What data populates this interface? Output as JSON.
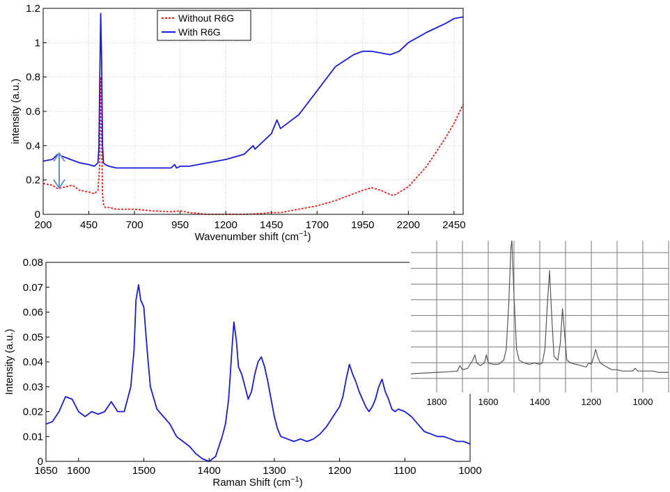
{
  "chart_data": [
    {
      "type": "line",
      "xlabel": "Wavenumber shift (cm",
      "xlabel_sup": "−1",
      "xlabel_close": ")",
      "ylabel": "intensity (a.u.)",
      "xlim": [
        200,
        2500
      ],
      "ylim": [
        0,
        1.2
      ],
      "xticks": [
        "200",
        "450",
        "700",
        "950",
        "1200",
        "1450",
        "1700",
        "1950",
        "2200",
        "2450"
      ],
      "yticks": [
        "0",
        "0.2",
        "0.4",
        "0.6",
        "0.8",
        "1",
        "1.2"
      ],
      "grid": true,
      "legend": "top-center",
      "annotation": "double-headed arrow between curves near x≈300",
      "series": [
        {
          "name": "Without R6G",
          "color": "#e8201c",
          "style": "dashed",
          "x": [
            200,
            250,
            280,
            320,
            360,
            400,
            450,
            480,
            500,
            510,
            515,
            520,
            525,
            530,
            540,
            560,
            600,
            700,
            800,
            900,
            950,
            1000,
            1100,
            1200,
            1300,
            1400,
            1450,
            1500,
            1550,
            1600,
            1700,
            1800,
            1900,
            1950,
            2000,
            2050,
            2100,
            2120,
            2200,
            2300,
            2400,
            2450,
            2500
          ],
          "y": [
            0.18,
            0.17,
            0.15,
            0.16,
            0.17,
            0.14,
            0.13,
            0.12,
            0.14,
            0.3,
            0.8,
            0.45,
            0.12,
            0.06,
            0.04,
            0.04,
            0.03,
            0.03,
            0.02,
            0.015,
            0.02,
            0.01,
            0.0,
            0.0,
            0.0,
            0.005,
            0.01,
            0.01,
            0.02,
            0.03,
            0.05,
            0.08,
            0.12,
            0.14,
            0.155,
            0.14,
            0.115,
            0.11,
            0.16,
            0.28,
            0.44,
            0.53,
            0.64
          ]
        },
        {
          "name": "With R6G",
          "color": "#1a1ad6",
          "style": "solid",
          "x": [
            200,
            250,
            280,
            300,
            350,
            400,
            450,
            480,
            500,
            505,
            510,
            515,
            520,
            525,
            530,
            540,
            560,
            600,
            700,
            800,
            900,
            920,
            930,
            950,
            1000,
            1100,
            1200,
            1300,
            1340,
            1350,
            1360,
            1400,
            1450,
            1480,
            1500,
            1550,
            1600,
            1700,
            1800,
            1900,
            1950,
            2000,
            2050,
            2100,
            2150,
            2200,
            2300,
            2400,
            2450,
            2500
          ],
          "y": [
            0.31,
            0.32,
            0.35,
            0.34,
            0.32,
            0.3,
            0.29,
            0.28,
            0.3,
            0.4,
            0.8,
            1.17,
            0.9,
            0.4,
            0.3,
            0.29,
            0.28,
            0.27,
            0.27,
            0.27,
            0.27,
            0.29,
            0.27,
            0.28,
            0.28,
            0.3,
            0.32,
            0.35,
            0.39,
            0.4,
            0.38,
            0.42,
            0.47,
            0.55,
            0.5,
            0.54,
            0.58,
            0.72,
            0.86,
            0.93,
            0.95,
            0.95,
            0.94,
            0.93,
            0.95,
            1.0,
            1.06,
            1.11,
            1.14,
            1.15
          ]
        }
      ]
    },
    {
      "type": "line",
      "xlabel": "Raman Shift (cm",
      "xlabel_sup": "−1",
      "xlabel_close": ")",
      "ylabel": "Intensity (a.u.)",
      "xlim": [
        1650,
        1000
      ],
      "ylim": [
        0,
        0.08
      ],
      "x_reversed": true,
      "xticks": [
        "1650",
        "1600",
        "1500",
        "1400",
        "1300",
        "1200",
        "1100",
        "1000"
      ],
      "yticks": [
        "0",
        "0.01",
        "0.02",
        "0.03",
        "0.04",
        "0.05",
        "0.06",
        "0.07",
        "0.08"
      ],
      "grid": false,
      "series": [
        {
          "color": "#1a1ad6",
          "x": [
            1650,
            1640,
            1630,
            1620,
            1610,
            1600,
            1590,
            1580,
            1570,
            1560,
            1550,
            1540,
            1530,
            1525,
            1520,
            1515,
            1512,
            1508,
            1505,
            1500,
            1495,
            1490,
            1480,
            1470,
            1460,
            1450,
            1440,
            1430,
            1420,
            1410,
            1400,
            1390,
            1380,
            1375,
            1370,
            1365,
            1362,
            1358,
            1355,
            1350,
            1345,
            1340,
            1335,
            1330,
            1325,
            1320,
            1315,
            1310,
            1305,
            1300,
            1295,
            1290,
            1280,
            1270,
            1260,
            1250,
            1240,
            1230,
            1220,
            1210,
            1200,
            1195,
            1190,
            1185,
            1180,
            1175,
            1170,
            1165,
            1160,
            1155,
            1150,
            1145,
            1140,
            1135,
            1130,
            1125,
            1120,
            1115,
            1110,
            1100,
            1090,
            1080,
            1070,
            1060,
            1050,
            1040,
            1030,
            1020,
            1010,
            1000
          ],
          "y": [
            0.015,
            0.016,
            0.02,
            0.026,
            0.025,
            0.02,
            0.018,
            0.02,
            0.019,
            0.02,
            0.024,
            0.02,
            0.02,
            0.025,
            0.03,
            0.045,
            0.065,
            0.071,
            0.065,
            0.062,
            0.045,
            0.03,
            0.021,
            0.018,
            0.015,
            0.01,
            0.008,
            0.006,
            0.003,
            0.001,
            0.0,
            0.002,
            0.01,
            0.015,
            0.025,
            0.045,
            0.056,
            0.048,
            0.038,
            0.035,
            0.03,
            0.025,
            0.028,
            0.035,
            0.04,
            0.042,
            0.038,
            0.032,
            0.025,
            0.018,
            0.013,
            0.01,
            0.009,
            0.008,
            0.009,
            0.008,
            0.009,
            0.011,
            0.014,
            0.018,
            0.022,
            0.026,
            0.033,
            0.039,
            0.035,
            0.032,
            0.028,
            0.025,
            0.022,
            0.02,
            0.022,
            0.025,
            0.03,
            0.033,
            0.028,
            0.025,
            0.021,
            0.02,
            0.021,
            0.02,
            0.018,
            0.015,
            0.012,
            0.011,
            0.01,
            0.01,
            0.009,
            0.008,
            0.008,
            0.007
          ]
        }
      ]
    },
    {
      "type": "line",
      "inset": true,
      "xlim": [
        1900,
        900
      ],
      "x_reversed": true,
      "xticks": [
        "1800",
        "1600",
        "1400",
        "1200",
        "1000"
      ],
      "grid": true,
      "series": [
        {
          "color": "#555555",
          "x": [
            1900,
            1850,
            1800,
            1750,
            1720,
            1710,
            1700,
            1680,
            1660,
            1652,
            1645,
            1630,
            1615,
            1607,
            1600,
            1580,
            1560,
            1540,
            1530,
            1520,
            1512,
            1508,
            1500,
            1490,
            1480,
            1460,
            1440,
            1420,
            1400,
            1390,
            1380,
            1370,
            1362,
            1355,
            1345,
            1330,
            1320,
            1312,
            1305,
            1295,
            1280,
            1260,
            1240,
            1220,
            1210,
            1200,
            1190,
            1183,
            1175,
            1165,
            1150,
            1130,
            1120,
            1110,
            1100,
            1080,
            1060,
            1040,
            1030,
            1020,
            1000,
            980,
            960,
            940,
            920,
            900
          ],
          "y": [
            0.02,
            0.025,
            0.03,
            0.035,
            0.04,
            0.08,
            0.05,
            0.06,
            0.12,
            0.16,
            0.1,
            0.08,
            0.1,
            0.16,
            0.1,
            0.09,
            0.09,
            0.12,
            0.2,
            0.55,
            0.95,
            1.0,
            0.6,
            0.2,
            0.12,
            0.1,
            0.09,
            0.1,
            0.09,
            0.1,
            0.2,
            0.55,
            0.78,
            0.5,
            0.15,
            0.12,
            0.25,
            0.5,
            0.35,
            0.12,
            0.1,
            0.09,
            0.08,
            0.07,
            0.1,
            0.09,
            0.15,
            0.2,
            0.14,
            0.1,
            0.08,
            0.06,
            0.05,
            0.05,
            0.05,
            0.04,
            0.04,
            0.04,
            0.06,
            0.04,
            0.04,
            0.04,
            0.04,
            0.03,
            0.03,
            0.03
          ]
        }
      ]
    }
  ]
}
